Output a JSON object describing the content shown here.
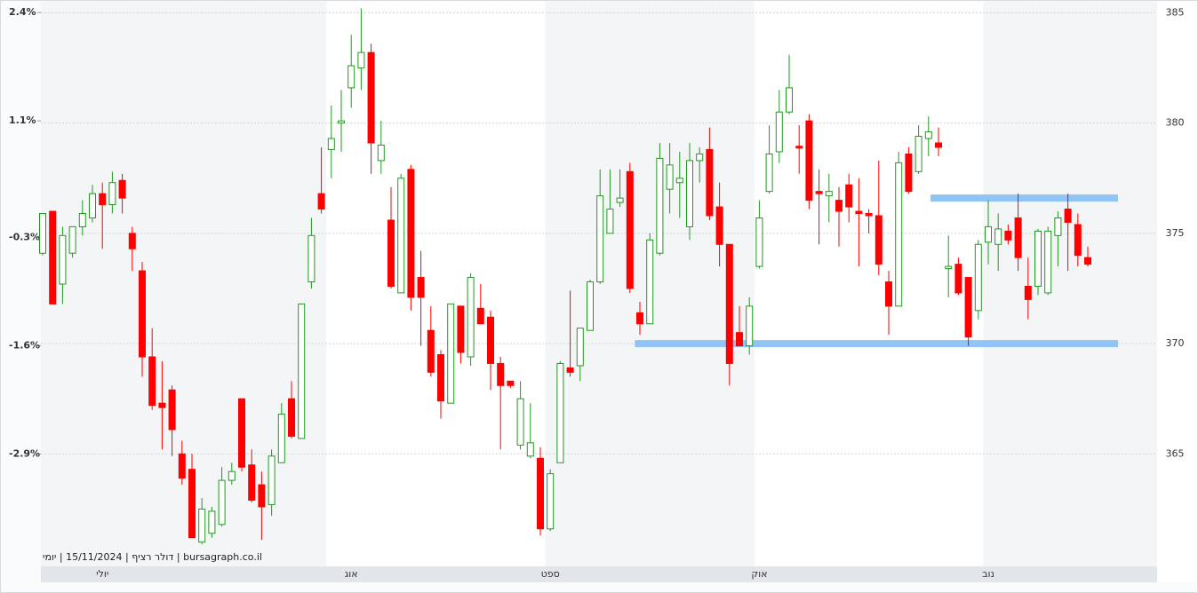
{
  "chart_data": {
    "type": "candlestick",
    "categories": [
      null,
      null,
      null,
      null,
      null,
      null,
      "יולי",
      null,
      null,
      null,
      null,
      null,
      null,
      null,
      null,
      null,
      null,
      null,
      null,
      null,
      null,
      null,
      null,
      null,
      null,
      null,
      null,
      null,
      null,
      null,
      null,
      "אוג",
      null,
      null,
      null,
      null,
      null,
      null,
      null,
      null,
      null,
      null,
      null,
      null,
      null,
      null,
      null,
      null,
      null,
      null,
      null,
      "ספט",
      null,
      null,
      null,
      null,
      null,
      null,
      null,
      null,
      null,
      null,
      null,
      null,
      null,
      null,
      null,
      null,
      null,
      null,
      null,
      null,
      "אוק",
      null,
      null,
      null,
      null,
      null,
      null,
      null,
      null,
      null,
      null,
      null,
      null,
      null,
      null,
      null,
      null,
      null,
      null,
      null,
      null,
      null,
      null,
      "נוב",
      null,
      null,
      null,
      null,
      null,
      null,
      null,
      null,
      null,
      null
    ],
    "open": [
      374.1,
      376.0,
      372.7,
      374.1,
      375.3,
      375.7,
      376.8,
      376.3,
      377.4,
      375.0,
      373.3,
      369.4,
      367.3,
      367.9,
      365.0,
      364.3,
      361.0,
      361.4,
      361.8,
      363.8,
      367.5,
      364.5,
      363.6,
      362.7,
      364.6,
      367.5,
      365.7,
      372.8,
      376.8,
      378.8,
      380.0,
      381.6,
      382.5,
      383.2,
      378.3,
      375.6,
      372.3,
      377.9,
      373.0,
      370.6,
      369.5,
      367.3,
      371.7,
      369.4,
      371.6,
      371.2,
      369.1,
      368.3,
      365.4,
      364.9,
      364.8,
      361.6,
      364.6,
      368.9,
      369.0,
      370.6,
      372.8,
      375.0,
      376.4,
      377.8,
      371.4,
      370.9,
      374.1,
      377.0,
      377.3,
      375.3,
      378.3,
      378.8,
      376.2,
      374.5,
      370.5,
      369.9,
      373.5,
      376.9,
      378.7,
      380.5,
      378.95,
      380.1,
      376.9,
      376.7,
      376.5,
      377.2,
      376.0,
      375.9,
      375.8,
      372.8,
      371.7,
      378.6,
      377.8,
      379.3,
      379.1,
      373.4,
      373.6,
      373.0,
      371.5,
      374.6,
      374.5,
      375.1,
      375.7,
      372.6,
      372.6,
      372.3,
      374.9,
      376.1,
      375.4,
      373.9
    ],
    "high": [
      375.9,
      376.0,
      375.3,
      375.3,
      376.5,
      377.2,
      377.3,
      377.8,
      377.7,
      375.3,
      373.7,
      370.7,
      369.2,
      368.1,
      365.6,
      365.0,
      363.0,
      362.6,
      364.4,
      364.6,
      367.5,
      365.2,
      364.2,
      365.2,
      367.3,
      368.3,
      371.8,
      375.7,
      378.9,
      380.8,
      381.5,
      384.0,
      385.2,
      383.6,
      380.1,
      377.1,
      377.7,
      378.1,
      374.2,
      371.7,
      369.7,
      371.8,
      371.7,
      373.2,
      372.7,
      371.5,
      369.4,
      368.3,
      368.3,
      367.3,
      365.3,
      364.3,
      369.2,
      372.4,
      370.7,
      372.9,
      377.9,
      377.9,
      377.9,
      378.2,
      371.9,
      375.0,
      379.1,
      379.1,
      378.7,
      379.1,
      378.9,
      379.8,
      377.3,
      374.5,
      371.7,
      372.1,
      376.5,
      379.9,
      381.5,
      383.1,
      379.9,
      380.4,
      377.9,
      377.7,
      377.1,
      377.7,
      377.5,
      376.1,
      378.3,
      373.3,
      378.7,
      378.9,
      379.9,
      380.3,
      379.8,
      374.9,
      373.9,
      373.0,
      374.7,
      376.5,
      375.9,
      375.4,
      376.8,
      373.9,
      375.2,
      375.3,
      376.0,
      376.8,
      375.9,
      374.4
    ],
    "low": [
      374.0,
      371.8,
      371.8,
      373.9,
      374.9,
      375.5,
      374.3,
      375.9,
      375.9,
      373.3,
      368.5,
      367.0,
      365.2,
      364.9,
      363.6,
      361.2,
      360.9,
      361.2,
      361.7,
      363.6,
      364.2,
      362.8,
      361.1,
      362.2,
      364.6,
      365.7,
      365.7,
      372.5,
      375.9,
      377.5,
      378.7,
      380.7,
      381.5,
      377.7,
      377.7,
      372.5,
      372.3,
      371.5,
      369.9,
      368.5,
      366.6,
      367.3,
      369.1,
      369.0,
      370.9,
      367.9,
      365.2,
      368.0,
      365.2,
      364.8,
      361.3,
      361.5,
      364.6,
      368.5,
      368.3,
      370.6,
      372.7,
      375.0,
      376.2,
      372.3,
      370.4,
      370.9,
      374.0,
      375.9,
      375.7,
      374.7,
      377.3,
      375.6,
      373.5,
      368.1,
      369.9,
      369.5,
      373.4,
      376.8,
      378.2,
      380.4,
      377.7,
      376.1,
      374.5,
      375.5,
      374.4,
      375.5,
      373.5,
      375.0,
      373.1,
      370.4,
      371.7,
      376.8,
      377.7,
      378.5,
      378.5,
      372.1,
      372.2,
      369.9,
      371.1,
      373.6,
      373.3,
      374.5,
      373.3,
      371.1,
      372.2,
      372.2,
      373.5,
      373.3,
      373.5,
      373.5
    ],
    "close": [
      375.9,
      371.8,
      374.9,
      375.3,
      375.9,
      376.8,
      376.3,
      377.3,
      376.6,
      374.3,
      369.4,
      367.2,
      367.1,
      366.1,
      363.9,
      361.2,
      362.5,
      362.4,
      363.8,
      364.2,
      364.4,
      362.9,
      362.6,
      364.9,
      366.8,
      365.8,
      371.8,
      374.9,
      376.1,
      379.3,
      380.1,
      382.6,
      383.2,
      379.1,
      379.0,
      372.6,
      377.5,
      372.1,
      372.1,
      368.7,
      367.4,
      371.8,
      369.6,
      373.0,
      370.9,
      369.1,
      368.1,
      368.1,
      367.5,
      365.5,
      361.6,
      364.1,
      369.1,
      368.7,
      370.7,
      372.8,
      376.7,
      376.1,
      376.6,
      372.5,
      370.9,
      374.7,
      378.4,
      378.1,
      377.5,
      378.3,
      378.6,
      375.8,
      374.5,
      369.1,
      369.9,
      371.7,
      375.7,
      378.6,
      380.5,
      381.6,
      378.9,
      376.5,
      376.8,
      376.9,
      376.0,
      376.2,
      375.9,
      375.8,
      373.6,
      371.7,
      378.2,
      376.9,
      379.4,
      379.6,
      378.9,
      373.5,
      372.3,
      370.3,
      374.5,
      375.3,
      375.2,
      374.7,
      373.9,
      372.0,
      375.1,
      375.1,
      375.7,
      375.5,
      374.0,
      373.6
    ],
    "up_color": "#1f9a1f",
    "down_color": "#ff0000",
    "ylim": [
      359.9,
      385.5
    ],
    "yticks": [
      365,
      370,
      375,
      380,
      385
    ],
    "y2lim": [
      -4.25,
      2.53
    ],
    "y2ticks": [
      {
        "value": -2.9,
        "label": "-2.9%"
      },
      {
        "value": -1.6,
        "label": "-1.6%"
      },
      {
        "value": -0.3,
        "label": "-0.3%"
      },
      {
        "value": 1.1,
        "label": "1.1%"
      },
      {
        "value": 2.4,
        "label": "2.4%"
      }
    ],
    "hlines": [
      370,
      376.6
    ],
    "hline_color": "#90c4f4",
    "grid": true,
    "footer": "bursagraph.co.il | דולר רציף | 15/11/2024 | יומי"
  }
}
